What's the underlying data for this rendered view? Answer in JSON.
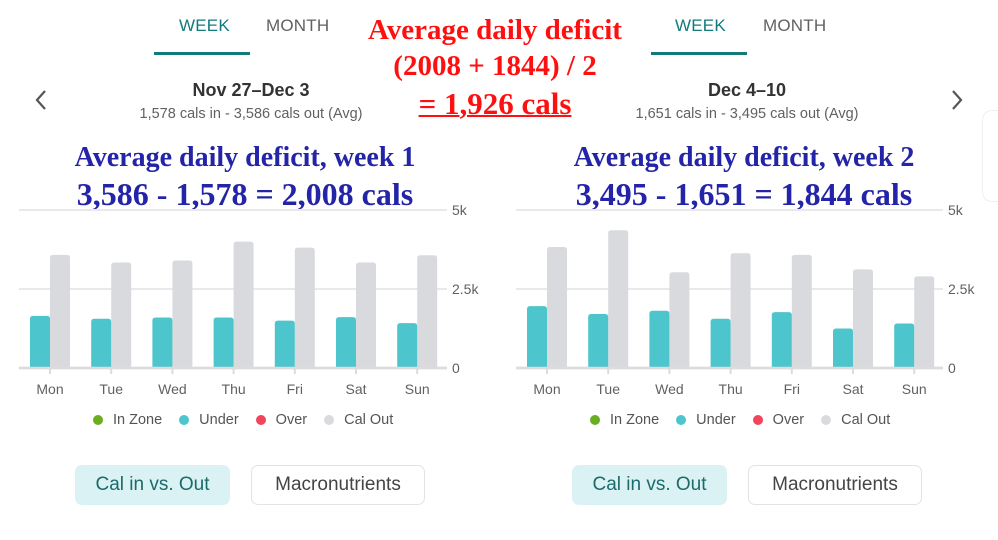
{
  "colors": {
    "accent": "#127a7a",
    "in_zone": "#6aad1f",
    "under": "#4dc5cc",
    "over": "#f0455a",
    "cal_out": "#d9dadd",
    "annotation_blue": "#2424a8",
    "annotation_red": "#ff1010"
  },
  "center_annotation": {
    "line1": "Average daily deficit",
    "line2": "(2008 + 1844) / 2",
    "line3": "= 1,926 cals"
  },
  "panels": [
    {
      "tabs": [
        {
          "label": "WEEK",
          "active": true
        },
        {
          "label": "MONTH",
          "active": false
        }
      ],
      "nav_icon": "chevron-left-icon",
      "range_title": "Nov 27–Dec 3",
      "range_sub": "1,578 cals in - 3,586 cals out (Avg)",
      "annotation": {
        "line1": "Average daily deficit, week 1",
        "line2": "3,586 - 1,578 = 2,008 cals"
      },
      "legend": [
        "In Zone",
        "Under",
        "Over",
        "Cal Out"
      ],
      "buttons": {
        "cal_in_out": "Cal in vs. Out",
        "macros": "Macronutrients"
      }
    },
    {
      "tabs": [
        {
          "label": "WEEK",
          "active": true
        },
        {
          "label": "MONTH",
          "active": false
        }
      ],
      "nav_icon": "chevron-right-icon",
      "range_title": "Dec 4–10",
      "range_sub": "1,651 cals in - 3,495 cals out (Avg)",
      "annotation": {
        "line1": "Average daily deficit, week 2",
        "line2": "3,495 - 1,651 = 1,844 cals"
      },
      "legend": [
        "In Zone",
        "Under",
        "Over",
        "Cal Out"
      ],
      "buttons": {
        "cal_in_out": "Cal in vs. Out",
        "macros": "Macronutrients"
      }
    }
  ],
  "chart_data": [
    {
      "type": "bar",
      "title": "Nov 27–Dec 3",
      "categories": [
        "Mon",
        "Tue",
        "Wed",
        "Thu",
        "Fri",
        "Sat",
        "Sun"
      ],
      "series": [
        {
          "name": "Under",
          "values": [
            1650,
            1560,
            1600,
            1600,
            1500,
            1610,
            1420
          ]
        },
        {
          "name": "Cal Out",
          "values": [
            3580,
            3340,
            3400,
            4000,
            3810,
            3340,
            3570
          ]
        }
      ],
      "yticks": [
        {
          "value": 0,
          "label": "0"
        },
        {
          "value": 2500,
          "label": "2.5k"
        },
        {
          "value": 5000,
          "label": "5k"
        }
      ],
      "ylim": [
        0,
        5000
      ],
      "grid": true,
      "legend_position": "bottom",
      "xlabel": "",
      "ylabel": ""
    },
    {
      "type": "bar",
      "title": "Dec 4–10",
      "categories": [
        "Mon",
        "Tue",
        "Wed",
        "Thu",
        "Fri",
        "Sat",
        "Sun"
      ],
      "series": [
        {
          "name": "Under",
          "values": [
            1960,
            1710,
            1810,
            1560,
            1770,
            1250,
            1410
          ]
        },
        {
          "name": "Cal Out",
          "values": [
            3830,
            4360,
            3030,
            3630,
            3580,
            3120,
            2900
          ]
        }
      ],
      "yticks": [
        {
          "value": 0,
          "label": "0"
        },
        {
          "value": 2500,
          "label": "2.5k"
        },
        {
          "value": 5000,
          "label": "5k"
        }
      ],
      "ylim": [
        0,
        5000
      ],
      "grid": true,
      "legend_position": "bottom",
      "xlabel": "",
      "ylabel": ""
    }
  ]
}
